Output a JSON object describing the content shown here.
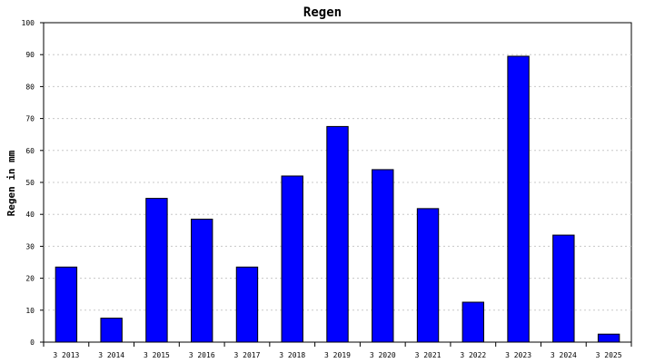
{
  "chart_data": {
    "type": "bar",
    "title": "Regen",
    "xlabel": "",
    "ylabel": "Regen in mm",
    "categories": [
      "3 2013",
      "3 2014",
      "3 2015",
      "3 2016",
      "3 2017",
      "3 2018",
      "3 2019",
      "3 2020",
      "3 2021",
      "3 2022",
      "3 2023",
      "3 2024",
      "3 2025"
    ],
    "values": [
      23.5,
      7.5,
      45,
      38.5,
      23.5,
      52,
      67.5,
      54,
      41.8,
      12.5,
      89.5,
      33.5,
      2.5
    ],
    "yticks": [
      "0",
      "10",
      "20",
      "30",
      "40",
      "50",
      "60",
      "70",
      "80",
      "90",
      "100"
    ],
    "ylim": [
      0,
      100
    ],
    "grid": true,
    "legend": "none",
    "colors": {
      "bar": "#0000ff",
      "bar_border": "#000000",
      "grid": "#c8c8c8"
    }
  }
}
